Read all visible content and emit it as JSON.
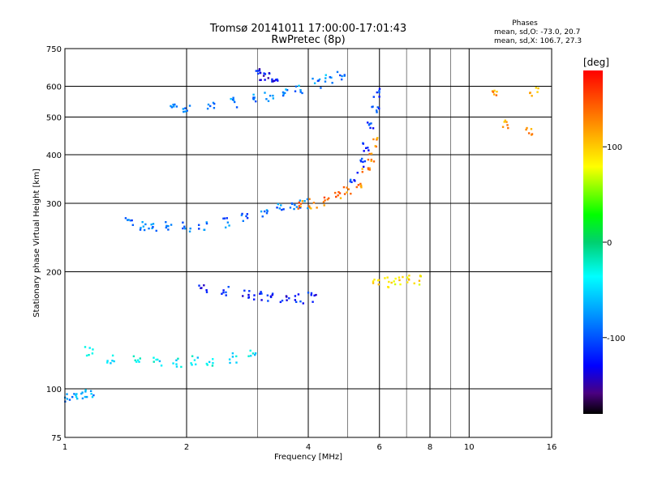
{
  "title_line1": "Tromsø 20141011 17:00:00-17:01:43",
  "title_line2": "RwPretec (8p)",
  "phases": {
    "heading": "Phases",
    "line_o": "mean, sd,O: -73.0, 20.7",
    "line_x": "mean, sd,X: 106.7, 27.3"
  },
  "colorbar": {
    "label": "[deg]",
    "ticks": [
      "100",
      "0",
      "-100"
    ],
    "tick_values": [
      100,
      0,
      -100
    ],
    "range": [
      -180,
      180
    ]
  },
  "chart_data": {
    "type": "scatter",
    "xlabel": "Frequency [MHz]",
    "ylabel": "Stationary phase Virtual Height [km]",
    "xscale": "log",
    "yscale": "log",
    "xlim": [
      1,
      16
    ],
    "ylim": [
      75,
      750
    ],
    "xticks": [
      1,
      2,
      4,
      6,
      8,
      10,
      16
    ],
    "xtick_labels": [
      "1",
      "2",
      "4",
      "6",
      "8",
      "10",
      "16"
    ],
    "yticks": [
      75,
      100,
      200,
      300,
      400,
      500,
      600,
      750
    ],
    "ytick_labels": [
      "75",
      "100",
      "200",
      "300",
      "400",
      "500",
      "600",
      "750"
    ],
    "grid": true,
    "color_by": "phase [deg]",
    "traces": [
      {
        "x": [
          1.45,
          1.55,
          1.65,
          1.8,
          2.0,
          2.2,
          2.5,
          2.8,
          3.1,
          3.4,
          3.7,
          3.9
        ],
        "y": [
          268,
          262,
          262,
          262,
          260,
          262,
          268,
          275,
          282,
          290,
          296,
          300
        ],
        "phase": -90
      },
      {
        "x": [
          3.85,
          4.1,
          4.4,
          4.7,
          5.0,
          5.3,
          5.55,
          5.7,
          5.8
        ],
        "y": [
          296,
          300,
          304,
          312,
          322,
          340,
          365,
          395,
          430
        ],
        "phase": 130
      },
      {
        "x": [
          5.2,
          5.4,
          5.6,
          5.75,
          5.85,
          5.9
        ],
        "y": [
          350,
          380,
          420,
          470,
          520,
          580
        ],
        "phase": -110
      },
      {
        "x": [
          1.85,
          2.0,
          2.3,
          2.6,
          2.9,
          3.2,
          3.5,
          3.8,
          4.2,
          4.5,
          4.8
        ],
        "y": [
          530,
          530,
          535,
          545,
          555,
          565,
          575,
          590,
          610,
          625,
          640
        ],
        "phase": -80
      },
      {
        "x": [
          1.15,
          1.3,
          1.5,
          1.7,
          1.9,
          2.1,
          2.3,
          2.6,
          2.9
        ],
        "y": [
          125,
          120,
          118,
          117,
          117,
          118,
          118,
          120,
          122
        ],
        "phase": -40
      },
      {
        "x": [
          1.0,
          1.05,
          1.1,
          1.15
        ],
        "y": [
          95,
          96,
          97,
          98
        ],
        "phase": -70
      },
      {
        "x": [
          2.2,
          2.5,
          2.8,
          3.0,
          3.2,
          3.5,
          3.8,
          4.1
        ],
        "y": [
          180,
          178,
          176,
          174,
          172,
          170,
          170,
          172
        ],
        "phase": -120
      },
      {
        "x": [
          3.0,
          3.1,
          3.2,
          3.3
        ],
        "y": [
          650,
          640,
          630,
          625
        ],
        "phase": -130
      },
      {
        "x": [
          5.9,
          6.3,
          6.6,
          7.0,
          7.5
        ],
        "y": [
          190,
          188,
          189,
          190,
          191
        ],
        "phase": 90
      },
      {
        "x": [
          11.5,
          12.2,
          14.0,
          14.5
        ],
        "y": [
          580,
          480,
          460,
          580
        ],
        "phase": 120
      }
    ]
  }
}
